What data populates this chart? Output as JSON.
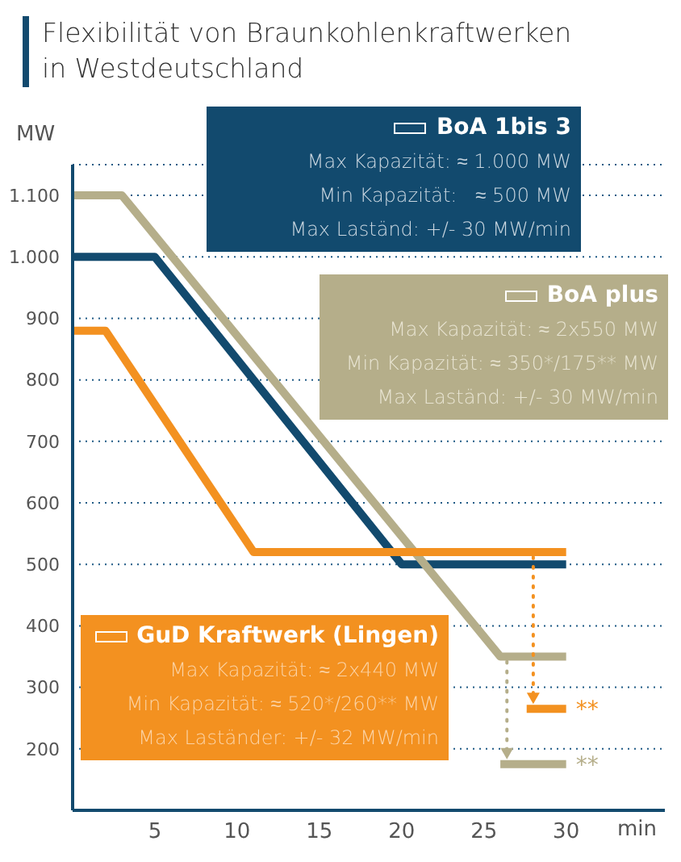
{
  "chart_data": {
    "type": "line",
    "title": "Flexibilität von Braunkohlenkraftwerken in Westdeutschland",
    "ylabel": "MW",
    "xlabel": "min",
    "xlim": [
      0,
      36
    ],
    "xticks": [
      5,
      10,
      15,
      20,
      25,
      30
    ],
    "ylim": [
      100,
      1150
    ],
    "yticks": [
      200,
      300,
      400,
      500,
      600,
      700,
      800,
      900,
      {
        "value": 1000,
        "label": "1.000"
      },
      {
        "value": 1100,
        "label": "1.100"
      }
    ],
    "grid": "y",
    "legend": "top right",
    "marker": "none",
    "line_style": "solid",
    "series": [
      {
        "name": "BoA 1bis 3",
        "color": "#124a6e",
        "x": [
          0,
          5,
          20,
          30
        ],
        "values": [
          1000,
          1000,
          500,
          500
        ]
      },
      {
        "name": "BoA plus",
        "color": "#b5ae8a",
        "x": [
          0,
          3,
          26,
          30
        ],
        "values": [
          1100,
          1100,
          350,
          350
        ]
      },
      {
        "name": "GuD Kraftwerk (Lingen)",
        "color": "#f39120",
        "x": [
          0,
          2,
          11,
          30
        ],
        "values": [
          880,
          880,
          520,
          520
        ]
      },
      {
        "color": "#f39120",
        "x": [
          27.6,
          30
        ],
        "values": [
          265,
          265
        ]
      },
      {
        "color": "#b5ae8a",
        "x": [
          26,
          30
        ],
        "values": [
          175,
          175
        ]
      }
    ],
    "annotations": [
      "Max Kapazität: ≈ 1.000 MW",
      "Min Kapazität:   ≈ 500 MW",
      "Max Laständ: +/- 30 MW/min",
      "Max Kapazität: ≈ 2x550 MW",
      "Min Kapazität: ≈ 350*/175** MW",
      "Max Laständ: +/- 30 MW/min",
      "Max Kapazität: ≈ 2x440 MW",
      "Min Kapazität: ≈ 520*/260** MW",
      "Max Laständer: +/- 32 MW/min",
      {
        "text": "**",
        "x": 30,
        "y": 265
      },
      {
        "text": "**",
        "x": 30,
        "y": 175
      }
    ]
  }
}
